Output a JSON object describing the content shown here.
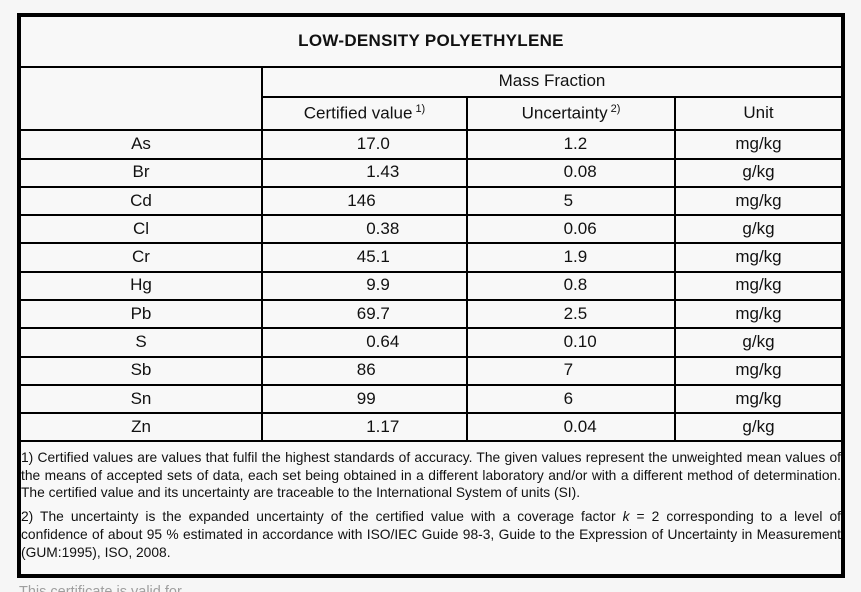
{
  "title": "LOW-DENSITY POLYETHYLENE",
  "table": {
    "group_header": "Mass Fraction",
    "columns": {
      "certified": {
        "label": "Certified value",
        "sup": "1)"
      },
      "uncertainty": {
        "label": "Uncertainty",
        "sup": "2)"
      },
      "unit": "Unit"
    },
    "rows": [
      {
        "element": "As",
        "value": "17.0",
        "uncertainty": "1.2",
        "unit": "mg/kg"
      },
      {
        "element": "Br",
        "value": "1.43",
        "uncertainty": "0.08",
        "unit": "g/kg"
      },
      {
        "element": "Cd",
        "value": "146",
        "uncertainty": "5",
        "unit": "mg/kg"
      },
      {
        "element": "Cl",
        "value": "0.38",
        "uncertainty": "0.06",
        "unit": "g/kg"
      },
      {
        "element": "Cr",
        "value": "45.1",
        "uncertainty": "1.9",
        "unit": "mg/kg"
      },
      {
        "element": "Hg",
        "value": "9.9",
        "uncertainty": "0.8",
        "unit": "mg/kg"
      },
      {
        "element": "Pb",
        "value": "69.7",
        "uncertainty": "2.5",
        "unit": "mg/kg"
      },
      {
        "element": "S",
        "value": "0.64",
        "uncertainty": "0.10",
        "unit": "g/kg"
      },
      {
        "element": "Sb",
        "value": "86",
        "uncertainty": "7",
        "unit": "mg/kg"
      },
      {
        "element": "Sn",
        "value": "99",
        "uncertainty": "6",
        "unit": "mg/kg"
      },
      {
        "element": "Zn",
        "value": "1.17",
        "uncertainty": "0.04",
        "unit": "g/kg"
      }
    ]
  },
  "footnotes": {
    "note1": "1) Certified values are values that fulfil the highest standards of accuracy. The given values represent the unweighted mean values of the means of accepted sets of data, each set being obtained in a different laboratory and/or with a different method of determination. The certified value and its uncertainty are traceable to the International System of units (SI).",
    "note2_pre": "2) The uncertainty is the expanded uncertainty of the certified value with a coverage factor ",
    "note2_k": "k",
    "note2_post": " = 2 corresponding to a level of confidence of about 95 % estimated in accordance with ISO/IEC Guide 98-3, Guide to the Expression of Uncertainty in Measurement (GUM:1995), ISO, 2008."
  },
  "bottom_text": "This certificate is valid for",
  "colors": {
    "border": "#000000",
    "page_background": "#f6f6f6",
    "table_background": "#f8f8f8",
    "text": "#111111",
    "faded_text": "#9f9f9f"
  }
}
